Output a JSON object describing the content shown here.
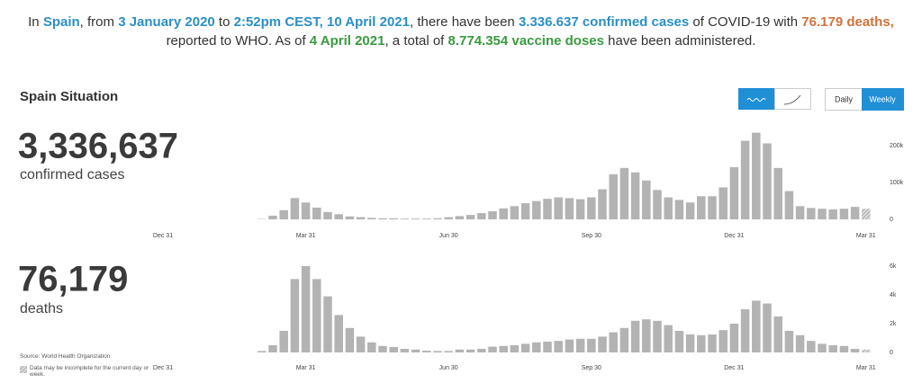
{
  "header": {
    "lines": [
      [
        {
          "text": "In "
        },
        {
          "text": "Spain",
          "color": "#2b8fc6"
        },
        {
          "text": ", from "
        },
        {
          "text": "3 January 2020",
          "color": "#2b8fc6"
        },
        {
          "text": " to "
        },
        {
          "text": "2:52pm CEST, 10 April 2021",
          "color": "#2b8fc6"
        },
        {
          "text": ", there have been "
        },
        {
          "text": "3.336.637 confirmed cases",
          "color": "#2b8fc6"
        },
        {
          "text": " of COVID-19 with "
        },
        {
          "text": "76.179 deaths,",
          "color": "#d4713b"
        }
      ],
      [
        {
          "text": "reported to WHO. As of "
        },
        {
          "text": "4 April 2021",
          "color": "#3a9a3f"
        },
        {
          "text": ", a total of "
        },
        {
          "text": "8.774.354 vaccine doses",
          "color": "#3a9a3f"
        },
        {
          "text": " have been administered."
        }
      ]
    ]
  },
  "situation": {
    "title": "Spain Situation",
    "metrics": [
      {
        "value": "3,336,637",
        "label": "confirmed cases"
      },
      {
        "value": "76,179",
        "label": "deaths"
      }
    ]
  },
  "controls": {
    "period": [
      "Daily",
      "Weekly"
    ],
    "selected": "Weekly"
  },
  "footer": {
    "source": "Source: World Health Organization",
    "note": "Data may be incomplete for the current day or week."
  },
  "chart_data": [
    {
      "type": "bar",
      "color": "#b3b3b3",
      "categories": [
        "Dec 31",
        null,
        null,
        null,
        null,
        null,
        null,
        null,
        null,
        null,
        null,
        null,
        null,
        "Mar 31",
        null,
        null,
        null,
        null,
        null,
        null,
        null,
        null,
        null,
        null,
        null,
        null,
        "Jun 30",
        null,
        null,
        null,
        null,
        null,
        null,
        null,
        null,
        null,
        null,
        null,
        null,
        "Sep 30",
        null,
        null,
        null,
        null,
        null,
        null,
        null,
        null,
        null,
        null,
        null,
        null,
        "Dec 31",
        null,
        null,
        null,
        null,
        null,
        null,
        null,
        null,
        null,
        null,
        null,
        "Mar 31"
      ],
      "values": [
        null,
        null,
        null,
        null,
        null,
        null,
        null,
        null,
        null,
        1000,
        10000,
        25000,
        58000,
        46000,
        32000,
        20000,
        14000,
        8000,
        6000,
        4000,
        3000,
        3000,
        2000,
        2000,
        2000,
        3000,
        6000,
        9000,
        12000,
        17000,
        22000,
        30000,
        36000,
        44000,
        50000,
        56000,
        60000,
        58000,
        55000,
        60000,
        82000,
        123000,
        140000,
        128000,
        106000,
        80000,
        60000,
        53000,
        46000,
        63000,
        63000,
        87000,
        142000,
        214000,
        236000,
        207000,
        140000,
        77000,
        36000,
        31000,
        29000,
        27000,
        29000,
        34000,
        29000
      ],
      "ylim": [
        0,
        240000
      ],
      "yticks": [
        0,
        {
          "value": 100000,
          "label": "100k"
        },
        {
          "value": 200000,
          "label": "200k"
        }
      ]
    },
    {
      "type": "bar",
      "color": "#b3b3b3",
      "categories": [
        "Dec 31",
        null,
        null,
        null,
        null,
        null,
        null,
        null,
        null,
        null,
        null,
        null,
        null,
        "Mar 31",
        null,
        null,
        null,
        null,
        null,
        null,
        null,
        null,
        null,
        null,
        null,
        null,
        "Jun 30",
        null,
        null,
        null,
        null,
        null,
        null,
        null,
        null,
        null,
        null,
        null,
        null,
        "Sep 30",
        null,
        null,
        null,
        null,
        null,
        null,
        null,
        null,
        null,
        null,
        null,
        null,
        "Dec 31",
        null,
        null,
        null,
        null,
        null,
        null,
        null,
        null,
        null,
        null,
        null,
        "Mar 31"
      ],
      "values": [
        null,
        null,
        null,
        null,
        null,
        null,
        null,
        null,
        null,
        100,
        500,
        1500,
        5100,
        6000,
        5100,
        3900,
        2600,
        1700,
        1100,
        700,
        450,
        380,
        250,
        200,
        120,
        100,
        100,
        200,
        200,
        250,
        400,
        450,
        500,
        600,
        700,
        750,
        800,
        900,
        950,
        950,
        1100,
        1400,
        1700,
        2200,
        2300,
        2200,
        1900,
        1500,
        1250,
        1200,
        1250,
        1550,
        2000,
        3000,
        3600,
        3400,
        2500,
        1500,
        1200,
        800,
        600,
        500,
        450,
        250,
        200
      ],
      "ylim": [
        0,
        6000
      ],
      "yticks": [
        0,
        {
          "value": 2000,
          "label": "2k"
        },
        {
          "value": 4000,
          "label": "4k"
        },
        {
          "value": 6000,
          "label": "6k"
        }
      ]
    }
  ]
}
